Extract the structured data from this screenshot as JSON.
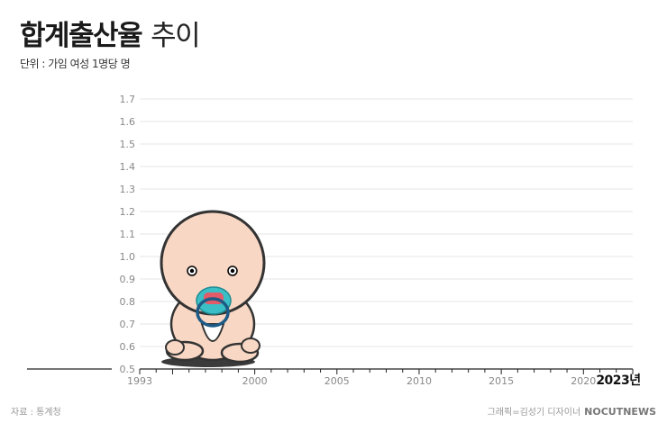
{
  "header": {
    "title_bold": "합계출산율",
    "title_light": "추이",
    "unit": "단위 : 가임 여성 1명당 명"
  },
  "footer": {
    "source": "자료 : 통계청",
    "credit": "그래픽=김성기 디자이너",
    "brand": "NOCUTNEWS"
  },
  "colors": {
    "grid": "#e6e6e6",
    "axis": "#222222",
    "tick_label": "#888888",
    "baby_skin": "#f8d7c4",
    "baby_outline": "#333333",
    "pacifier_shield": "#3bbfc6",
    "pacifier_nipple": "#e35a68",
    "pacifier_ring": "#1d5b86"
  },
  "illustration": {
    "icon": "baby-with-pacifier-icon"
  },
  "chart_data": {
    "type": "line",
    "title": "",
    "xlabel": "",
    "ylabel": "",
    "x_ticks": [
      "1993",
      "2000",
      "2005",
      "2010",
      "2015",
      "2020",
      "2023년"
    ],
    "y_ticks": [
      "0.5",
      "0.6",
      "0.7",
      "0.8",
      "0.9",
      "1.0",
      "1.1",
      "1.2",
      "1.3",
      "1.4",
      "1.5",
      "1.6",
      "1.7"
    ],
    "xlim": [
      1993,
      2023
    ],
    "ylim": [
      0.5,
      1.7
    ],
    "grid": true,
    "series": []
  }
}
